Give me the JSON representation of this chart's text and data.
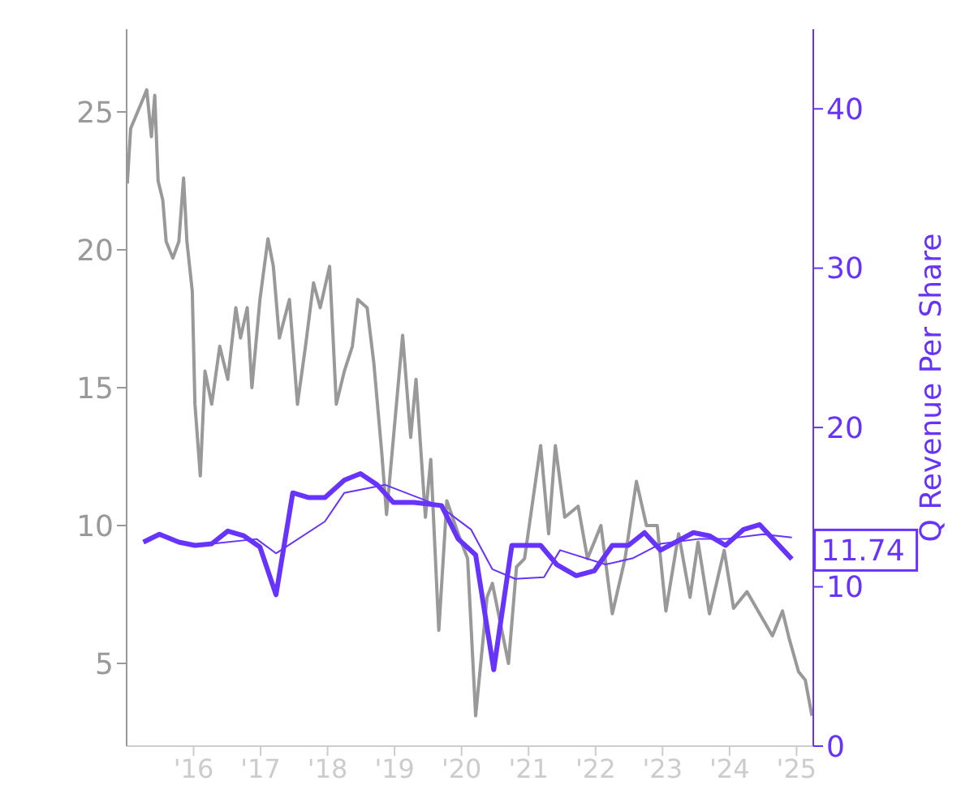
{
  "chart_data": {
    "type": "line",
    "y2label": "Q Revenue Per Share",
    "xlim": [
      2015,
      2025.25
    ],
    "xticks": [
      {
        "value": 2016,
        "label": "'16"
      },
      {
        "value": 2017,
        "label": "'17"
      },
      {
        "value": 2018,
        "label": "'18"
      },
      {
        "value": 2019,
        "label": "'19"
      },
      {
        "value": 2020,
        "label": "'20"
      },
      {
        "value": 2021,
        "label": "'21"
      },
      {
        "value": 2022,
        "label": "'22"
      },
      {
        "value": 2023,
        "label": "'23"
      },
      {
        "value": 2024,
        "label": "'24"
      },
      {
        "value": 2025,
        "label": "'25"
      }
    ],
    "ylim": [
      2,
      28
    ],
    "yticks": [
      5,
      10,
      15,
      20,
      25
    ],
    "y2lim": [
      0,
      45
    ],
    "y2ticks": [
      0,
      10,
      20,
      30,
      40
    ],
    "marker": "none",
    "grid": false,
    "legend": false,
    "series": [
      {
        "color": "#999999",
        "x": [
          2015.01,
          2015.06,
          2015.25,
          2015.3,
          2015.37,
          2015.42,
          2015.47,
          2015.54,
          2015.59,
          2015.69,
          2015.78,
          2015.85,
          2015.9,
          2015.98,
          2016.02,
          2016.1,
          2016.17,
          2016.27,
          2016.39,
          2016.51,
          2016.63,
          2016.7,
          2016.8,
          2016.87,
          2016.99,
          2017.11,
          2017.19,
          2017.28,
          2017.43,
          2017.55,
          2017.67,
          2017.79,
          2017.89,
          2018.03,
          2018.13,
          2018.25,
          2018.37,
          2018.45,
          2018.59,
          2018.69,
          2018.81,
          2018.88,
          2019.12,
          2019.24,
          2019.32,
          2019.46,
          2019.54,
          2019.66,
          2019.78,
          2019.95,
          2020.09,
          2020.21,
          2020.31,
          2020.38,
          2020.46,
          2020.7,
          2020.82,
          2020.94,
          2021.18,
          2021.3,
          2021.4,
          2021.54,
          2021.74,
          2021.88,
          2022.08,
          2022.25,
          2022.44,
          2022.61,
          2022.76,
          2022.92,
          2023.05,
          2023.24,
          2023.41,
          2023.53,
          2023.7,
          2023.92,
          2024.06,
          2024.26,
          2024.45,
          2024.64,
          2024.79,
          2024.89,
          2025.03,
          2025.13,
          2025.23
        ],
        "values": [
          22.4,
          24.4,
          25.5,
          25.8,
          24.1,
          25.6,
          22.5,
          21.8,
          20.3,
          19.7,
          20.3,
          22.6,
          20.3,
          18.5,
          14.4,
          11.8,
          15.6,
          14.4,
          16.5,
          15.3,
          17.9,
          16.8,
          17.9,
          15,
          18.2,
          20.4,
          19.4,
          16.8,
          18.2,
          14.4,
          16.5,
          18.8,
          17.9,
          19.4,
          14.4,
          15.6,
          16.5,
          18.2,
          17.9,
          15.9,
          12.6,
          10.4,
          16.9,
          13.2,
          15.3,
          10.3,
          12.4,
          6.2,
          10.9,
          9.7,
          8.8,
          3.1,
          5.6,
          7.4,
          7.9,
          5,
          8.5,
          8.8,
          12.9,
          9.7,
          12.9,
          10.3,
          10.7,
          8.8,
          10,
          6.8,
          8.8,
          11.6,
          10,
          10,
          6.9,
          9.7,
          7.4,
          9.4,
          6.8,
          9.1,
          7,
          7.6,
          6.8,
          6,
          6.9,
          5.9,
          4.7,
          4.4,
          3.1
        ]
      },
      {
        "color": "#6633ff",
        "axis": "y2",
        "x": [
          2016.27,
          2016.94,
          2017.23,
          2017.96,
          2018.25,
          2018.86,
          2019.66,
          2020.14,
          2020.46,
          2020.8,
          2021.23,
          2021.47,
          2022.15,
          2022.56,
          2022.97,
          2023.53,
          2023.94,
          2024.5,
          2024.93
        ],
        "values": [
          12.7,
          13,
          12.1,
          14.1,
          15.9,
          16.4,
          15.1,
          13.6,
          11.1,
          10.5,
          10.6,
          12.3,
          11.4,
          11.8,
          12.7,
          13,
          13,
          13.3,
          13.1
        ]
      },
      {
        "color": "#6633ff",
        "axis": "y2",
        "x": [
          2015.25,
          2015.49,
          2015.78,
          2016.02,
          2016.27,
          2016.51,
          2016.75,
          2016.99,
          2017.23,
          2017.48,
          2017.72,
          2017.96,
          2018.25,
          2018.49,
          2018.74,
          2018.98,
          2019.29,
          2019.7,
          2019.95,
          2020.21,
          2020.48,
          2020.75,
          2021.18,
          2021.42,
          2021.71,
          2021.98,
          2022.25,
          2022.49,
          2022.73,
          2022.97,
          2023.46,
          2023.7,
          2023.94,
          2024.21,
          2024.45,
          2024.93
        ],
        "values": [
          12.8,
          13.3,
          12.8,
          12.6,
          12.7,
          13.5,
          13.2,
          12.5,
          9.5,
          15.9,
          15.6,
          15.6,
          16.7,
          17.1,
          16.4,
          15.3,
          15.3,
          15.1,
          13,
          12,
          4.8,
          12.6,
          12.6,
          11.4,
          10.7,
          11,
          12.6,
          12.6,
          13.4,
          12.3,
          13.4,
          13.2,
          12.6,
          13.6,
          13.9,
          11.74
        ],
        "value_labels": [
          null,
          null,
          null,
          null,
          null,
          null,
          null,
          null,
          null,
          null,
          null,
          null,
          null,
          null,
          null,
          null,
          null,
          null,
          null,
          null,
          null,
          null,
          null,
          null,
          null,
          null,
          null,
          null,
          null,
          null,
          null,
          null,
          null,
          null,
          null,
          "11.74"
        ]
      }
    ]
  }
}
